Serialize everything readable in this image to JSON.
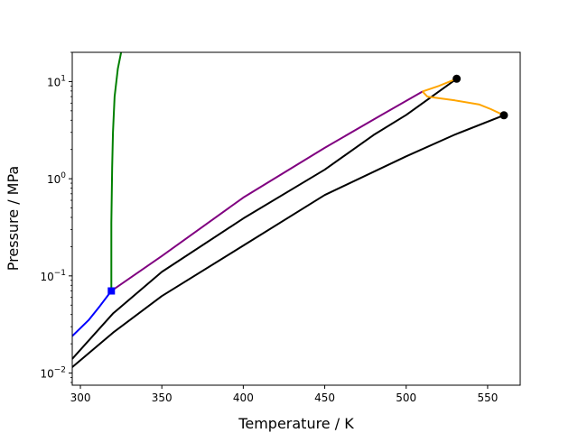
{
  "chart_data": {
    "type": "line",
    "title": "",
    "xlabel": "Temperature / K",
    "ylabel": "Pressure / MPa",
    "xlim": [
      295,
      570
    ],
    "ylim": [
      0.0075,
      20
    ],
    "yscale": "log",
    "grid": false,
    "legend": "none",
    "x_ticks": [
      {
        "value": 300,
        "label": "300"
      },
      {
        "value": 350,
        "label": "350"
      },
      {
        "value": 400,
        "label": "400"
      },
      {
        "value": 450,
        "label": "450"
      },
      {
        "value": 500,
        "label": "500"
      },
      {
        "value": 550,
        "label": "550"
      }
    ],
    "y_ticks": [
      {
        "value": 0.01,
        "base": "10",
        "exp": "−2"
      },
      {
        "value": 0.1,
        "base": "10",
        "exp": "−1"
      },
      {
        "value": 1,
        "base": "10",
        "exp": "0"
      },
      {
        "value": 10,
        "base": "10",
        "exp": "1"
      }
    ],
    "series": [
      {
        "color": "#000000",
        "points": [
          [
            295,
            0.0115
          ],
          [
            320,
            0.026
          ],
          [
            350,
            0.062
          ],
          [
            400,
            0.205
          ],
          [
            450,
            0.68
          ],
          [
            500,
            1.7
          ],
          [
            530,
            2.85
          ],
          [
            560,
            4.5
          ]
        ]
      },
      {
        "color": "#000000",
        "points": [
          [
            295,
            0.014
          ],
          [
            320,
            0.041
          ],
          [
            350,
            0.11
          ],
          [
            400,
            0.39
          ],
          [
            450,
            1.24
          ],
          [
            480,
            2.82
          ],
          [
            500,
            4.53
          ],
          [
            531,
            10.7
          ]
        ]
      },
      {
        "color": "#0000ff",
        "points": [
          [
            295,
            0.024
          ],
          [
            305,
            0.035
          ],
          [
            312,
            0.049
          ],
          [
            319,
            0.07
          ]
        ]
      },
      {
        "color": "#800080",
        "points": [
          [
            319,
            0.07
          ],
          [
            350,
            0.16
          ],
          [
            400,
            0.64
          ],
          [
            450,
            2.08
          ],
          [
            480,
            4.07
          ],
          [
            510,
            7.9
          ]
        ]
      },
      {
        "color": "#008000",
        "points": [
          [
            319,
            0.07
          ],
          [
            319,
            0.35
          ],
          [
            319.5,
            1.3
          ],
          [
            320,
            3.0
          ],
          [
            321,
            7.0
          ],
          [
            323,
            13.6
          ],
          [
            325,
            20
          ]
        ]
      },
      {
        "color": "#ffa500",
        "points": [
          [
            510,
            7.9
          ],
          [
            520,
            9.0
          ],
          [
            531,
            10.7
          ]
        ]
      },
      {
        "color": "#ffa500",
        "points": [
          [
            510,
            7.9
          ],
          [
            513,
            7.0
          ],
          [
            530,
            6.4
          ],
          [
            545,
            5.8
          ],
          [
            552,
            5.2
          ],
          [
            560,
            4.5
          ]
        ]
      }
    ],
    "markers": [
      {
        "x": 531,
        "y": 10.7,
        "shape": "circle",
        "color": "#000000"
      },
      {
        "x": 560,
        "y": 4.5,
        "shape": "circle",
        "color": "#000000"
      },
      {
        "x": 319,
        "y": 0.07,
        "shape": "square",
        "color": "#0000ff"
      }
    ]
  }
}
